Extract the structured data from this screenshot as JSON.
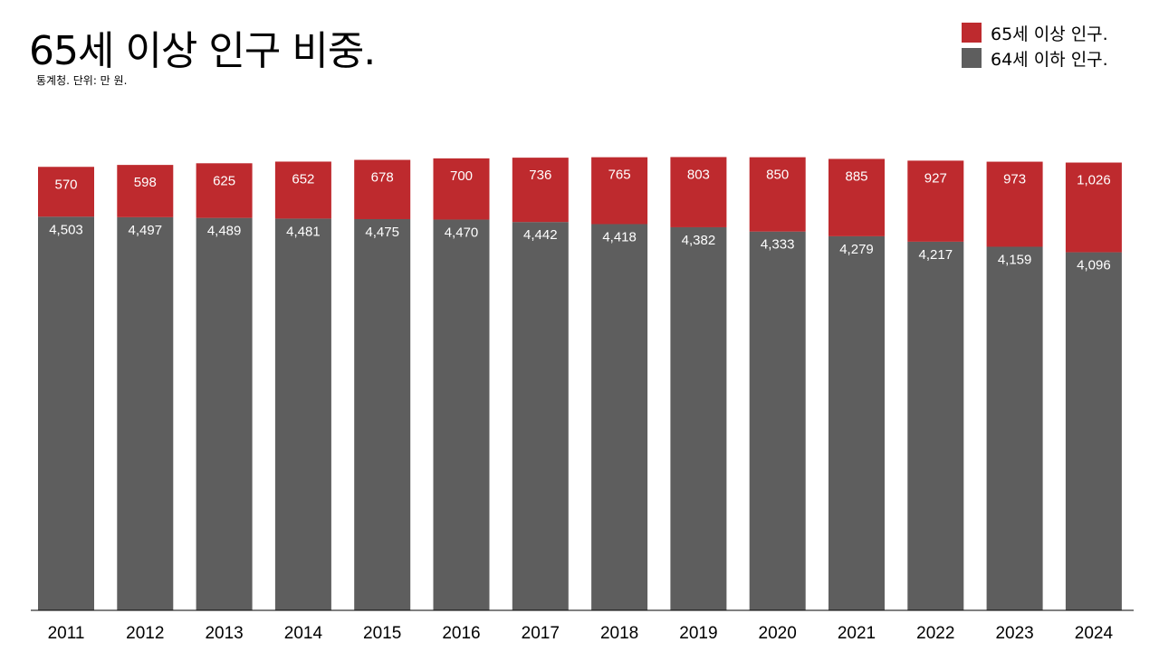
{
  "header": {
    "title": "65세 이상 인구 비중.",
    "subtitle": "통계청. 단위: 만 원."
  },
  "legend": [
    {
      "label": "65세 이상 인구.",
      "color": "#BE2A2E"
    },
    {
      "label": "64세 이하 인구.",
      "color": "#5E5E5E"
    }
  ],
  "chart_data": {
    "type": "bar",
    "stacked": true,
    "categories": [
      "2011",
      "2012",
      "2013",
      "2014",
      "2015",
      "2016",
      "2017",
      "2018",
      "2019",
      "2020",
      "2021",
      "2022",
      "2023",
      "2024"
    ],
    "series": [
      {
        "name": "64세 이하 인구.",
        "color": "#5E5E5E",
        "values": [
          4503,
          4497,
          4489,
          4481,
          4475,
          4470,
          4442,
          4418,
          4382,
          4333,
          4279,
          4217,
          4159,
          4096
        ],
        "labels": [
          "4,503",
          "4,497",
          "4,489",
          "4,481",
          "4,475",
          "4,470",
          "4,442",
          "4,418",
          "4,382",
          "4,333",
          "4,279",
          "4,217",
          "4,159",
          "4,096"
        ]
      },
      {
        "name": "65세 이상 인구.",
        "color": "#BE2A2E",
        "values": [
          570,
          598,
          625,
          652,
          678,
          700,
          736,
          765,
          803,
          850,
          885,
          927,
          973,
          1026
        ],
        "labels": [
          "570",
          "598",
          "625",
          "652",
          "678",
          "700",
          "736",
          "765",
          "803",
          "850",
          "885",
          "927",
          "973",
          "1,026"
        ]
      }
    ],
    "title": "65세 이상 인구 비중.",
    "xlabel": "",
    "ylabel": "",
    "ylim": [
      0,
      5180
    ],
    "grid": false,
    "legend_position": "top-right"
  }
}
